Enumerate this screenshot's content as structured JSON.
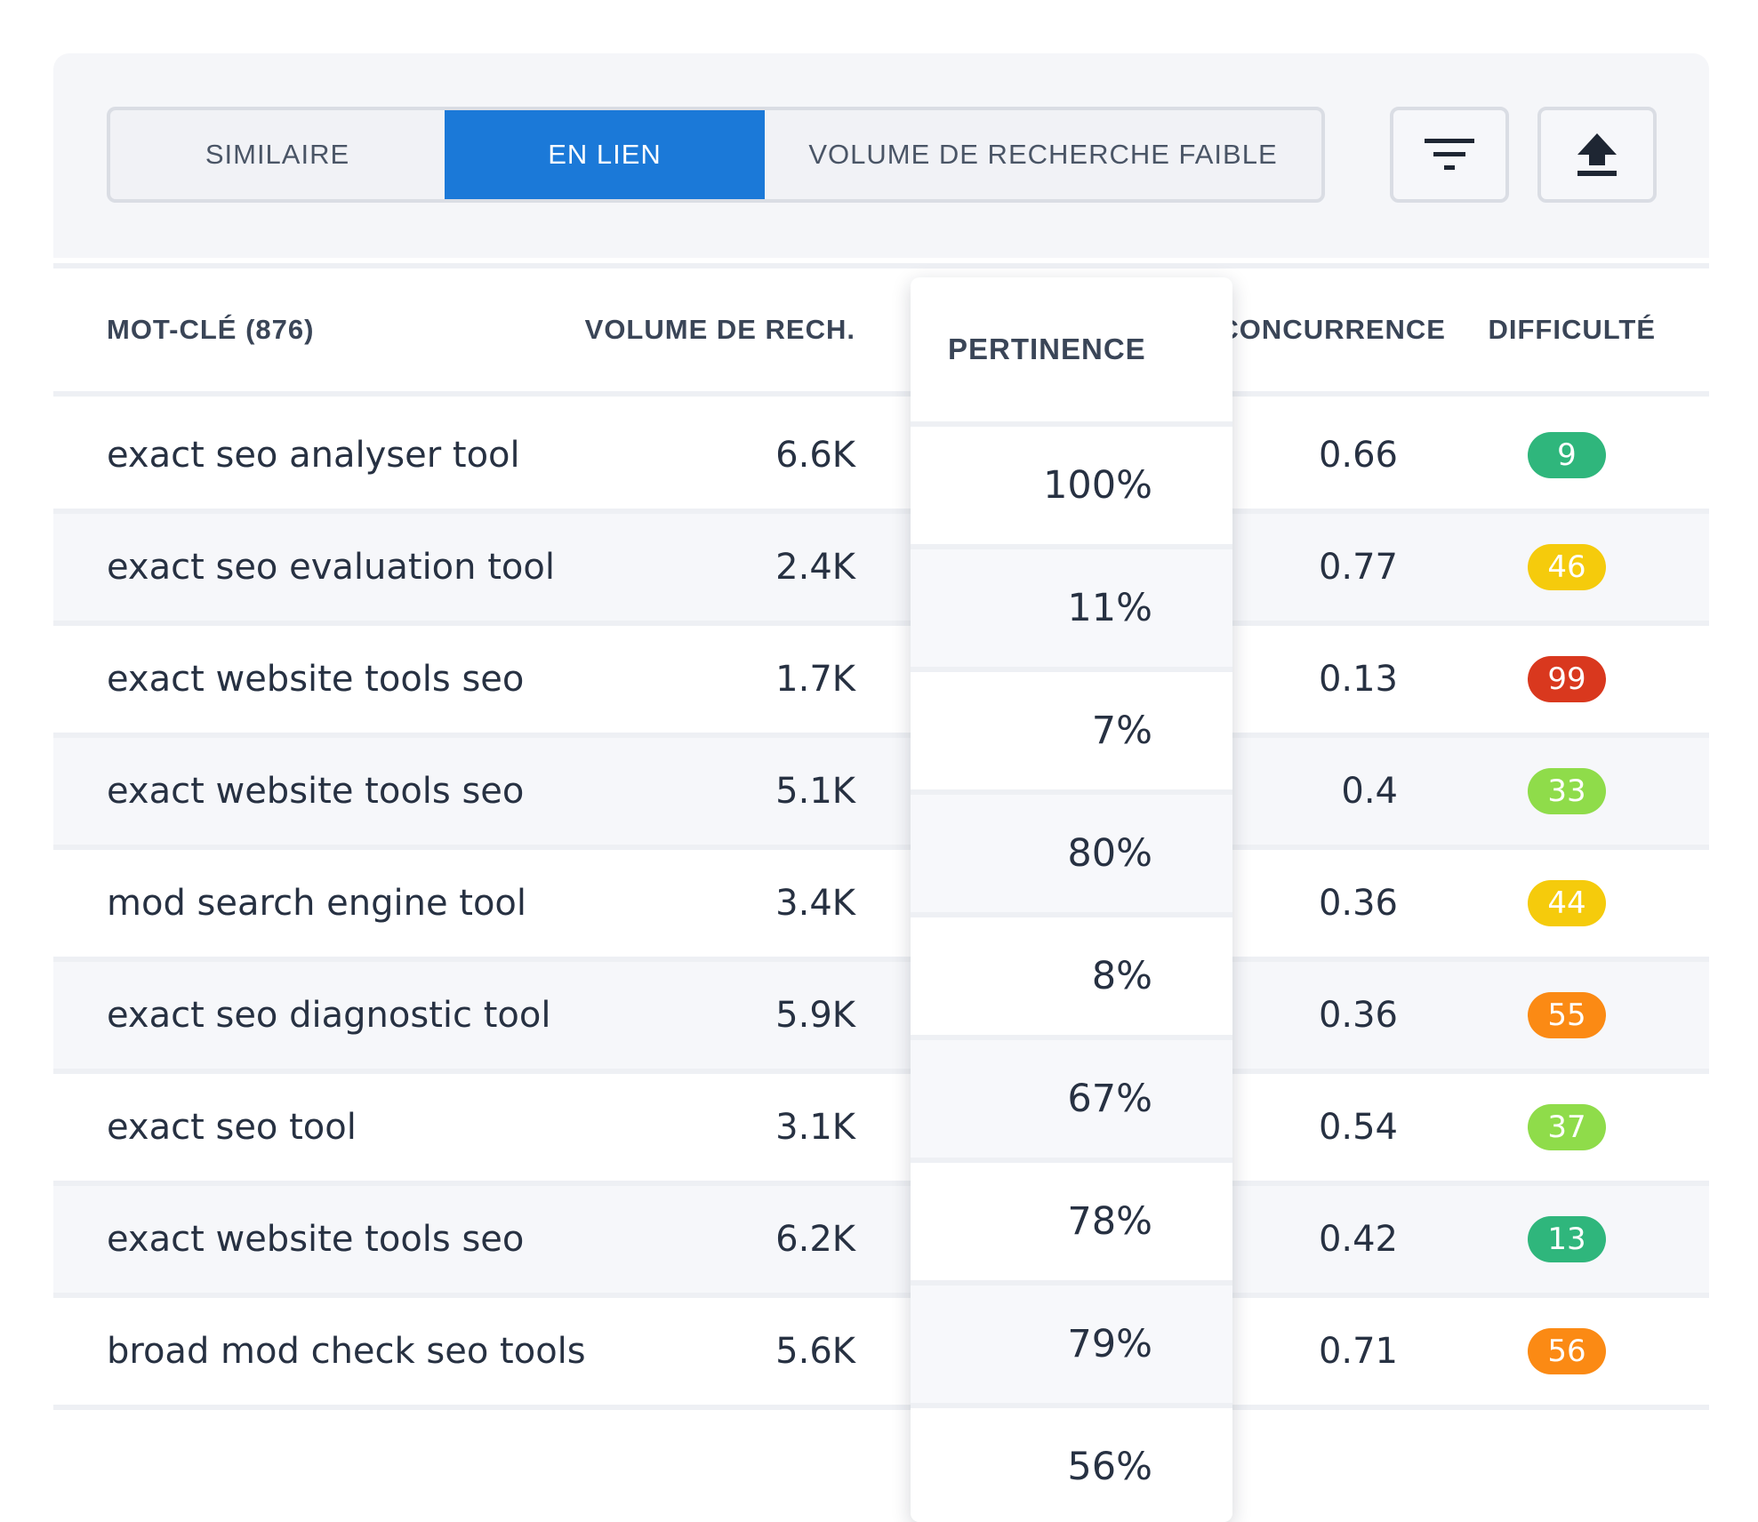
{
  "tabs": [
    {
      "label": "SIMILAIRE",
      "active": false
    },
    {
      "label": "EN LIEN",
      "active": true
    },
    {
      "label": "VOLUME DE RECHERCHE FAIBLE",
      "active": false
    }
  ],
  "toolbar": {
    "filter_icon": "filter-icon",
    "export_icon": "upload-icon"
  },
  "columns": {
    "keyword": "MOT-CLÉ (876)",
    "volume": "VOLUME DE RECH.",
    "relevance": "PERTINENCE",
    "competition": "CONCURRENCE",
    "difficulty": "DIFFICULTÉ"
  },
  "rows": [
    {
      "keyword": "exact seo analyser tool",
      "volume": "6.6K",
      "relevance": "100%",
      "competition": "0.66",
      "difficulty": "9",
      "difficulty_color": "#2fb67c"
    },
    {
      "keyword": "exact seo evaluation tool",
      "volume": "2.4K",
      "relevance": "11%",
      "competition": "0.77",
      "difficulty": "46",
      "difficulty_color": "#f5cb0c"
    },
    {
      "keyword": "exact website tools seo",
      "volume": "1.7K",
      "relevance": "7%",
      "competition": "0.13",
      "difficulty": "99",
      "difficulty_color": "#d9381e"
    },
    {
      "keyword": "exact website tools seo",
      "volume": "5.1K",
      "relevance": "80%",
      "competition": "0.4",
      "difficulty": "33",
      "difficulty_color": "#8fdc4a"
    },
    {
      "keyword": "mod search engine tool",
      "volume": "3.4K",
      "relevance": "8%",
      "competition": "0.36",
      "difficulty": "44",
      "difficulty_color": "#f5cb0c"
    },
    {
      "keyword": "exact seo diagnostic tool",
      "volume": "5.9K",
      "relevance": "67%",
      "competition": "0.36",
      "difficulty": "55",
      "difficulty_color": "#fb8a14"
    },
    {
      "keyword": "exact seo tool",
      "volume": "3.1K",
      "relevance": "78%",
      "competition": "0.54",
      "difficulty": "37",
      "difficulty_color": "#8fdc4a"
    },
    {
      "keyword": "exact website tools seo",
      "volume": "6.2K",
      "relevance": "79%",
      "competition": "0.42",
      "difficulty": "13",
      "difficulty_color": "#2fb67c"
    },
    {
      "keyword": "broad mod check seo tools",
      "volume": "5.6K",
      "relevance": "56%",
      "competition": "0.71",
      "difficulty": "56",
      "difficulty_color": "#fb8a14"
    }
  ]
}
